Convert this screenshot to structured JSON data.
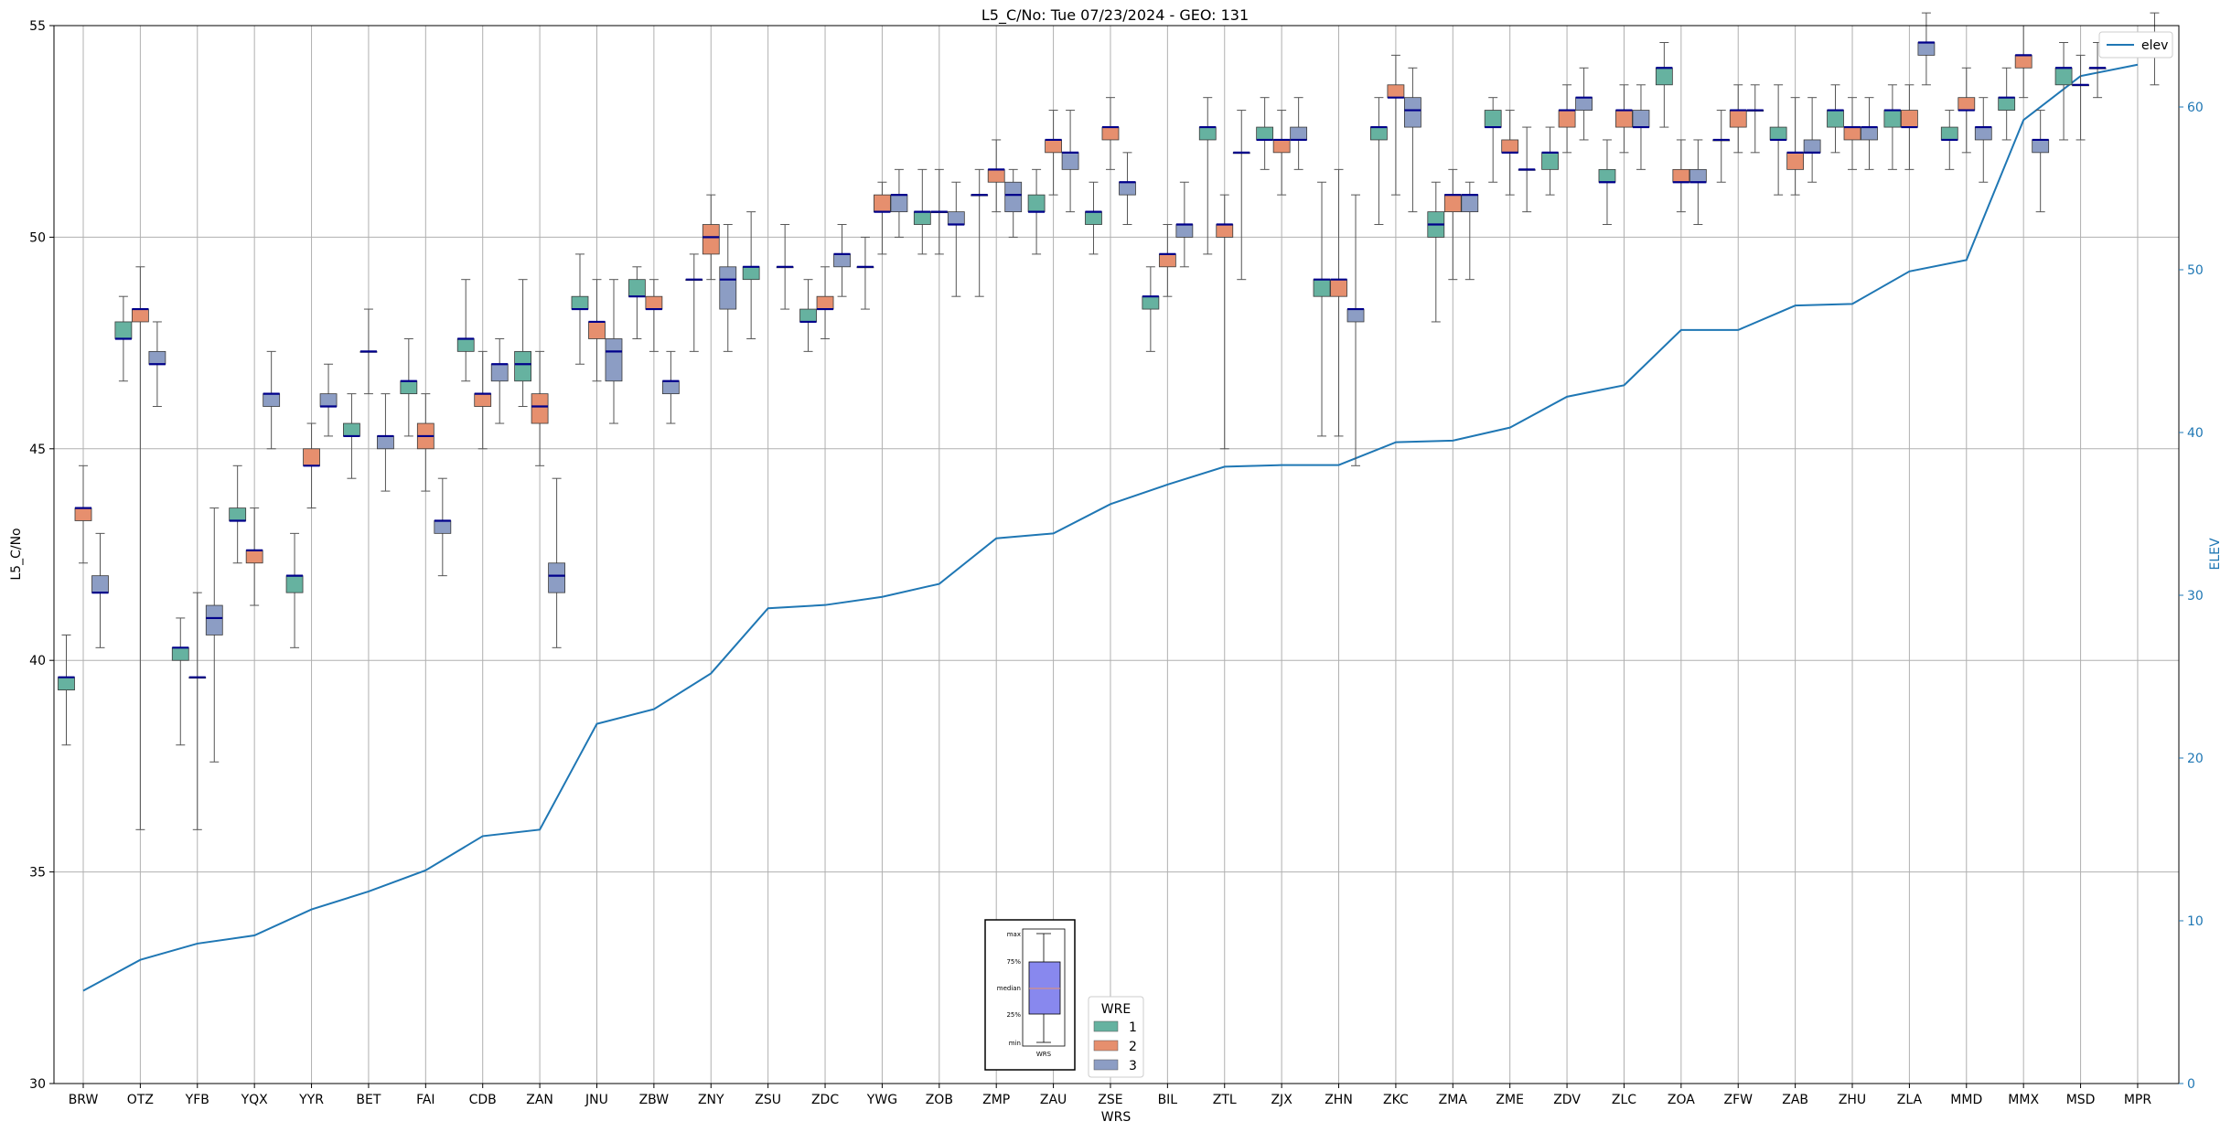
{
  "chart_data": {
    "type": "box",
    "title": "L5_C/No: Tue 07/23/2024 - GEO: 131",
    "xlabel": "WRS",
    "ylabel": "L5_C/No",
    "ylabel_right": "ELEV",
    "ylim": [
      30,
      55
    ],
    "ylim_right": [
      0,
      65
    ],
    "yticks": [
      "30",
      "35",
      "40",
      "45",
      "50",
      "55"
    ],
    "yticks_right": [
      "0",
      "10",
      "20",
      "30",
      "40",
      "50",
      "60"
    ],
    "grid": true,
    "colors": {
      "1": "#66b2a0",
      "2": "#e68f6e",
      "3": "#8c9dc4",
      "median": "#00008b",
      "elev": "#1f77b4",
      "whisker": "#555555"
    },
    "categories": [
      "BRW",
      "OTZ",
      "YFB",
      "YQX",
      "YYR",
      "BET",
      "FAI",
      "CDB",
      "ZAN",
      "JNU",
      "ZBW",
      "ZNY",
      "ZSU",
      "ZDC",
      "YWG",
      "ZOB",
      "ZMP",
      "ZAU",
      "ZSE",
      "BIL",
      "ZTL",
      "ZJX",
      "ZHN",
      "ZKC",
      "ZMA",
      "ZME",
      "ZDV",
      "ZLC",
      "ZOA",
      "ZFW",
      "ZAB",
      "ZHU",
      "ZLA",
      "MMD",
      "MMX",
      "MSD",
      "MPR"
    ],
    "boxes": [
      {
        "cat": "BRW",
        "wre": 1,
        "min": 38.0,
        "q1": 39.3,
        "med": 39.6,
        "q3": 39.6,
        "max": 40.6
      },
      {
        "cat": "BRW",
        "wre": 2,
        "min": 42.3,
        "q1": 43.3,
        "med": 43.6,
        "q3": 43.6,
        "max": 44.6
      },
      {
        "cat": "BRW",
        "wre": 3,
        "min": 40.3,
        "q1": 41.6,
        "med": 41.6,
        "q3": 42.0,
        "max": 43.0
      },
      {
        "cat": "OTZ",
        "wre": 1,
        "min": 46.6,
        "q1": 47.6,
        "med": 47.6,
        "q3": 48.0,
        "max": 48.6
      },
      {
        "cat": "OTZ",
        "wre": 2,
        "min": 36.0,
        "q1": 48.0,
        "med": 48.3,
        "q3": 48.3,
        "max": 49.3
      },
      {
        "cat": "OTZ",
        "wre": 3,
        "min": 46.0,
        "q1": 47.0,
        "med": 47.0,
        "q3": 47.3,
        "max": 48.0
      },
      {
        "cat": "YFB",
        "wre": 1,
        "min": 38.0,
        "q1": 40.0,
        "med": 40.3,
        "q3": 40.3,
        "max": 41.0
      },
      {
        "cat": "YFB",
        "wre": 2,
        "min": 36.0,
        "q1": 39.6,
        "med": 39.6,
        "q3": 39.6,
        "max": 41.6
      },
      {
        "cat": "YFB",
        "wre": 3,
        "min": 37.6,
        "q1": 40.6,
        "med": 41.0,
        "q3": 41.3,
        "max": 43.6
      },
      {
        "cat": "YQX",
        "wre": 1,
        "min": 42.3,
        "q1": 43.3,
        "med": 43.3,
        "q3": 43.6,
        "max": 44.6
      },
      {
        "cat": "YQX",
        "wre": 2,
        "min": 41.3,
        "q1": 42.3,
        "med": 42.6,
        "q3": 42.6,
        "max": 43.6
      },
      {
        "cat": "YQX",
        "wre": 3,
        "min": 45.0,
        "q1": 46.0,
        "med": 46.3,
        "q3": 46.3,
        "max": 47.3
      },
      {
        "cat": "YYR",
        "wre": 1,
        "min": 40.3,
        "q1": 41.6,
        "med": 42.0,
        "q3": 42.0,
        "max": 43.0
      },
      {
        "cat": "YYR",
        "wre": 2,
        "min": 43.6,
        "q1": 44.6,
        "med": 44.6,
        "q3": 45.0,
        "max": 45.6
      },
      {
        "cat": "YYR",
        "wre": 3,
        "min": 45.3,
        "q1": 46.0,
        "med": 46.0,
        "q3": 46.3,
        "max": 47.0
      },
      {
        "cat": "BET",
        "wre": 1,
        "min": 44.3,
        "q1": 45.3,
        "med": 45.3,
        "q3": 45.6,
        "max": 46.3
      },
      {
        "cat": "BET",
        "wre": 2,
        "min": 46.3,
        "q1": 47.3,
        "med": 47.3,
        "q3": 47.3,
        "max": 48.3
      },
      {
        "cat": "BET",
        "wre": 3,
        "min": 44.0,
        "q1": 45.0,
        "med": 45.3,
        "q3": 45.3,
        "max": 46.3
      },
      {
        "cat": "FAI",
        "wre": 1,
        "min": 45.3,
        "q1": 46.3,
        "med": 46.6,
        "q3": 46.6,
        "max": 47.6
      },
      {
        "cat": "FAI",
        "wre": 2,
        "min": 44.0,
        "q1": 45.0,
        "med": 45.3,
        "q3": 45.6,
        "max": 46.3
      },
      {
        "cat": "FAI",
        "wre": 3,
        "min": 42.0,
        "q1": 43.0,
        "med": 43.3,
        "q3": 43.3,
        "max": 44.3
      },
      {
        "cat": "CDB",
        "wre": 1,
        "min": 46.6,
        "q1": 47.3,
        "med": 47.6,
        "q3": 47.6,
        "max": 49.0
      },
      {
        "cat": "CDB",
        "wre": 2,
        "min": 45.0,
        "q1": 46.0,
        "med": 46.3,
        "q3": 46.3,
        "max": 47.3
      },
      {
        "cat": "CDB",
        "wre": 3,
        "min": 45.6,
        "q1": 46.6,
        "med": 47.0,
        "q3": 47.0,
        "max": 47.6
      },
      {
        "cat": "ZAN",
        "wre": 1,
        "min": 46.0,
        "q1": 46.6,
        "med": 47.0,
        "q3": 47.3,
        "max": 49.0
      },
      {
        "cat": "ZAN",
        "wre": 2,
        "min": 44.6,
        "q1": 45.6,
        "med": 46.0,
        "q3": 46.3,
        "max": 47.3
      },
      {
        "cat": "ZAN",
        "wre": 3,
        "min": 40.3,
        "q1": 41.6,
        "med": 42.0,
        "q3": 42.3,
        "max": 44.3
      },
      {
        "cat": "JNU",
        "wre": 1,
        "min": 47.0,
        "q1": 48.3,
        "med": 48.3,
        "q3": 48.6,
        "max": 49.6
      },
      {
        "cat": "JNU",
        "wre": 2,
        "min": 46.6,
        "q1": 47.6,
        "med": 48.0,
        "q3": 48.0,
        "max": 49.0
      },
      {
        "cat": "JNU",
        "wre": 3,
        "min": 45.6,
        "q1": 46.6,
        "med": 47.3,
        "q3": 47.6,
        "max": 49.0
      },
      {
        "cat": "ZBW",
        "wre": 1,
        "min": 47.6,
        "q1": 48.6,
        "med": 48.6,
        "q3": 49.0,
        "max": 49.3
      },
      {
        "cat": "ZBW",
        "wre": 2,
        "min": 47.3,
        "q1": 48.3,
        "med": 48.3,
        "q3": 48.6,
        "max": 49.0
      },
      {
        "cat": "ZBW",
        "wre": 3,
        "min": 45.6,
        "q1": 46.3,
        "med": 46.6,
        "q3": 46.6,
        "max": 47.3
      },
      {
        "cat": "ZNY",
        "wre": 1,
        "min": 47.3,
        "q1": 49.0,
        "med": 49.0,
        "q3": 49.0,
        "max": 49.6
      },
      {
        "cat": "ZNY",
        "wre": 2,
        "min": 49.0,
        "q1": 49.6,
        "med": 50.0,
        "q3": 50.3,
        "max": 51.0
      },
      {
        "cat": "ZNY",
        "wre": 3,
        "min": 47.3,
        "q1": 48.3,
        "med": 49.0,
        "q3": 49.3,
        "max": 50.3
      },
      {
        "cat": "ZSU",
        "wre": 1,
        "min": 47.6,
        "q1": 49.0,
        "med": 49.3,
        "q3": 49.3,
        "max": 50.6
      },
      {
        "cat": "ZSU",
        "wre": 3,
        "min": 48.3,
        "q1": 49.3,
        "med": 49.3,
        "q3": 49.3,
        "max": 50.3
      },
      {
        "cat": "ZDC",
        "wre": 1,
        "min": 47.3,
        "q1": 48.0,
        "med": 48.0,
        "q3": 48.3,
        "max": 49.0
      },
      {
        "cat": "ZDC",
        "wre": 2,
        "min": 47.6,
        "q1": 48.3,
        "med": 48.3,
        "q3": 48.6,
        "max": 49.3
      },
      {
        "cat": "ZDC",
        "wre": 3,
        "min": 48.6,
        "q1": 49.3,
        "med": 49.6,
        "q3": 49.6,
        "max": 50.3
      },
      {
        "cat": "YWG",
        "wre": 1,
        "min": 48.3,
        "q1": 49.3,
        "med": 49.3,
        "q3": 49.3,
        "max": 50.0
      },
      {
        "cat": "YWG",
        "wre": 2,
        "min": 49.6,
        "q1": 50.6,
        "med": 50.6,
        "q3": 51.0,
        "max": 51.3
      },
      {
        "cat": "YWG",
        "wre": 3,
        "min": 50.0,
        "q1": 50.6,
        "med": 51.0,
        "q3": 51.0,
        "max": 51.6
      },
      {
        "cat": "ZOB",
        "wre": 1,
        "min": 49.6,
        "q1": 50.3,
        "med": 50.6,
        "q3": 50.6,
        "max": 51.6
      },
      {
        "cat": "ZOB",
        "wre": 2,
        "min": 49.6,
        "q1": 50.6,
        "med": 50.6,
        "q3": 50.6,
        "max": 51.6
      },
      {
        "cat": "ZOB",
        "wre": 3,
        "min": 48.6,
        "q1": 50.3,
        "med": 50.3,
        "q3": 50.6,
        "max": 51.3
      },
      {
        "cat": "ZMP",
        "wre": 1,
        "min": 48.6,
        "q1": 51.0,
        "med": 51.0,
        "q3": 51.0,
        "max": 51.6
      },
      {
        "cat": "ZMP",
        "wre": 2,
        "min": 50.6,
        "q1": 51.3,
        "med": 51.6,
        "q3": 51.6,
        "max": 52.3
      },
      {
        "cat": "ZMP",
        "wre": 3,
        "min": 50.0,
        "q1": 50.6,
        "med": 51.0,
        "q3": 51.3,
        "max": 51.6
      },
      {
        "cat": "ZAU",
        "wre": 1,
        "min": 49.6,
        "q1": 50.6,
        "med": 50.6,
        "q3": 51.0,
        "max": 51.6
      },
      {
        "cat": "ZAU",
        "wre": 2,
        "min": 51.0,
        "q1": 52.0,
        "med": 52.3,
        "q3": 52.3,
        "max": 53.0
      },
      {
        "cat": "ZAU",
        "wre": 3,
        "min": 50.6,
        "q1": 51.6,
        "med": 52.0,
        "q3": 52.0,
        "max": 53.0
      },
      {
        "cat": "ZSE",
        "wre": 1,
        "min": 49.6,
        "q1": 50.3,
        "med": 50.6,
        "q3": 50.6,
        "max": 51.3
      },
      {
        "cat": "ZSE",
        "wre": 2,
        "min": 51.6,
        "q1": 52.3,
        "med": 52.6,
        "q3": 52.6,
        "max": 53.3
      },
      {
        "cat": "ZSE",
        "wre": 3,
        "min": 50.3,
        "q1": 51.0,
        "med": 51.3,
        "q3": 51.3,
        "max": 52.0
      },
      {
        "cat": "BIL",
        "wre": 1,
        "min": 47.3,
        "q1": 48.3,
        "med": 48.6,
        "q3": 48.6,
        "max": 49.3
      },
      {
        "cat": "BIL",
        "wre": 2,
        "min": 48.6,
        "q1": 49.3,
        "med": 49.6,
        "q3": 49.6,
        "max": 50.3
      },
      {
        "cat": "BIL",
        "wre": 3,
        "min": 49.3,
        "q1": 50.0,
        "med": 50.3,
        "q3": 50.3,
        "max": 51.3
      },
      {
        "cat": "ZTL",
        "wre": 1,
        "min": 49.6,
        "q1": 52.3,
        "med": 52.6,
        "q3": 52.6,
        "max": 53.3
      },
      {
        "cat": "ZTL",
        "wre": 2,
        "min": 45.0,
        "q1": 50.0,
        "med": 50.3,
        "q3": 50.3,
        "max": 51.0
      },
      {
        "cat": "ZTL",
        "wre": 3,
        "min": 49.0,
        "q1": 52.0,
        "med": 52.0,
        "q3": 52.0,
        "max": 53.0
      },
      {
        "cat": "ZJX",
        "wre": 1,
        "min": 51.6,
        "q1": 52.3,
        "med": 52.3,
        "q3": 52.6,
        "max": 53.3
      },
      {
        "cat": "ZJX",
        "wre": 2,
        "min": 51.0,
        "q1": 52.0,
        "med": 52.3,
        "q3": 52.3,
        "max": 53.0
      },
      {
        "cat": "ZJX",
        "wre": 3,
        "min": 51.6,
        "q1": 52.3,
        "med": 52.3,
        "q3": 52.6,
        "max": 53.3
      },
      {
        "cat": "ZHN",
        "wre": 1,
        "min": 45.3,
        "q1": 48.6,
        "med": 49.0,
        "q3": 49.0,
        "max": 51.3
      },
      {
        "cat": "ZHN",
        "wre": 2,
        "min": 45.3,
        "q1": 48.6,
        "med": 49.0,
        "q3": 49.0,
        "max": 51.6
      },
      {
        "cat": "ZHN",
        "wre": 3,
        "min": 44.6,
        "q1": 48.0,
        "med": 48.3,
        "q3": 48.3,
        "max": 51.0
      },
      {
        "cat": "ZKC",
        "wre": 1,
        "min": 50.3,
        "q1": 52.3,
        "med": 52.6,
        "q3": 52.6,
        "max": 53.3
      },
      {
        "cat": "ZKC",
        "wre": 2,
        "min": 51.0,
        "q1": 53.3,
        "med": 53.3,
        "q3": 53.6,
        "max": 54.3
      },
      {
        "cat": "ZKC",
        "wre": 3,
        "min": 50.6,
        "q1": 52.6,
        "med": 53.0,
        "q3": 53.3,
        "max": 54.0
      },
      {
        "cat": "ZMA",
        "wre": 1,
        "min": 48.0,
        "q1": 50.0,
        "med": 50.3,
        "q3": 50.6,
        "max": 51.3
      },
      {
        "cat": "ZMA",
        "wre": 2,
        "min": 49.0,
        "q1": 50.6,
        "med": 51.0,
        "q3": 51.0,
        "max": 51.6
      },
      {
        "cat": "ZMA",
        "wre": 3,
        "min": 49.0,
        "q1": 50.6,
        "med": 51.0,
        "q3": 51.0,
        "max": 51.3
      },
      {
        "cat": "ZME",
        "wre": 1,
        "min": 51.3,
        "q1": 52.6,
        "med": 52.6,
        "q3": 53.0,
        "max": 53.3
      },
      {
        "cat": "ZME",
        "wre": 2,
        "min": 51.0,
        "q1": 52.0,
        "med": 52.0,
        "q3": 52.3,
        "max": 53.0
      },
      {
        "cat": "ZME",
        "wre": 3,
        "min": 50.6,
        "q1": 51.6,
        "med": 51.6,
        "q3": 51.6,
        "max": 52.6
      },
      {
        "cat": "ZDV",
        "wre": 1,
        "min": 51.0,
        "q1": 51.6,
        "med": 52.0,
        "q3": 52.0,
        "max": 52.6
      },
      {
        "cat": "ZDV",
        "wre": 2,
        "min": 52.0,
        "q1": 52.6,
        "med": 53.0,
        "q3": 53.0,
        "max": 53.6
      },
      {
        "cat": "ZDV",
        "wre": 3,
        "min": 52.3,
        "q1": 53.0,
        "med": 53.3,
        "q3": 53.3,
        "max": 54.0
      },
      {
        "cat": "ZLC",
        "wre": 1,
        "min": 50.3,
        "q1": 51.3,
        "med": 51.3,
        "q3": 51.6,
        "max": 52.3
      },
      {
        "cat": "ZLC",
        "wre": 2,
        "min": 52.0,
        "q1": 52.6,
        "med": 53.0,
        "q3": 53.0,
        "max": 53.6
      },
      {
        "cat": "ZLC",
        "wre": 3,
        "min": 51.6,
        "q1": 52.6,
        "med": 52.6,
        "q3": 53.0,
        "max": 53.6
      },
      {
        "cat": "ZOA",
        "wre": 1,
        "min": 52.6,
        "q1": 53.6,
        "med": 54.0,
        "q3": 54.0,
        "max": 54.6
      },
      {
        "cat": "ZOA",
        "wre": 2,
        "min": 50.6,
        "q1": 51.3,
        "med": 51.3,
        "q3": 51.6,
        "max": 52.3
      },
      {
        "cat": "ZOA",
        "wre": 3,
        "min": 50.3,
        "q1": 51.3,
        "med": 51.3,
        "q3": 51.6,
        "max": 52.3
      },
      {
        "cat": "ZFW",
        "wre": 1,
        "min": 51.3,
        "q1": 52.3,
        "med": 52.3,
        "q3": 52.3,
        "max": 53.0
      },
      {
        "cat": "ZFW",
        "wre": 2,
        "min": 52.0,
        "q1": 52.6,
        "med": 53.0,
        "q3": 53.0,
        "max": 53.6
      },
      {
        "cat": "ZFW",
        "wre": 3,
        "min": 52.0,
        "q1": 53.0,
        "med": 53.0,
        "q3": 53.0,
        "max": 53.6
      },
      {
        "cat": "ZAB",
        "wre": 1,
        "min": 51.0,
        "q1": 52.3,
        "med": 52.3,
        "q3": 52.6,
        "max": 53.6
      },
      {
        "cat": "ZAB",
        "wre": 2,
        "min": 51.0,
        "q1": 51.6,
        "med": 52.0,
        "q3": 52.0,
        "max": 53.3
      },
      {
        "cat": "ZAB",
        "wre": 3,
        "min": 51.3,
        "q1": 52.0,
        "med": 52.0,
        "q3": 52.3,
        "max": 53.3
      },
      {
        "cat": "ZHU",
        "wre": 1,
        "min": 52.0,
        "q1": 52.6,
        "med": 53.0,
        "q3": 53.0,
        "max": 53.6
      },
      {
        "cat": "ZHU",
        "wre": 2,
        "min": 51.6,
        "q1": 52.3,
        "med": 52.6,
        "q3": 52.6,
        "max": 53.3
      },
      {
        "cat": "ZHU",
        "wre": 3,
        "min": 51.6,
        "q1": 52.3,
        "med": 52.6,
        "q3": 52.6,
        "max": 53.3
      },
      {
        "cat": "ZLA",
        "wre": 1,
        "min": 51.6,
        "q1": 52.6,
        "med": 53.0,
        "q3": 53.0,
        "max": 53.6
      },
      {
        "cat": "ZLA",
        "wre": 2,
        "min": 51.6,
        "q1": 52.6,
        "med": 52.6,
        "q3": 53.0,
        "max": 53.6
      },
      {
        "cat": "ZLA",
        "wre": 3,
        "min": 53.6,
        "q1": 54.3,
        "med": 54.6,
        "q3": 54.6,
        "max": 55.3
      },
      {
        "cat": "MMD",
        "wre": 1,
        "min": 51.6,
        "q1": 52.3,
        "med": 52.3,
        "q3": 52.6,
        "max": 53.0
      },
      {
        "cat": "MMD",
        "wre": 2,
        "min": 52.0,
        "q1": 53.0,
        "med": 53.0,
        "q3": 53.3,
        "max": 54.0
      },
      {
        "cat": "MMD",
        "wre": 3,
        "min": 51.3,
        "q1": 52.3,
        "med": 52.6,
        "q3": 52.6,
        "max": 53.3
      },
      {
        "cat": "MMX",
        "wre": 1,
        "min": 52.3,
        "q1": 53.0,
        "med": 53.3,
        "q3": 53.3,
        "max": 54.0
      },
      {
        "cat": "MMX",
        "wre": 2,
        "min": 53.3,
        "q1": 54.0,
        "med": 54.3,
        "q3": 54.3,
        "max": 55.0
      },
      {
        "cat": "MMX",
        "wre": 3,
        "min": 50.6,
        "q1": 52.0,
        "med": 52.3,
        "q3": 52.3,
        "max": 53.0
      },
      {
        "cat": "MSD",
        "wre": 1,
        "min": 52.3,
        "q1": 53.6,
        "med": 54.0,
        "q3": 54.0,
        "max": 54.6
      },
      {
        "cat": "MSD",
        "wre": 2,
        "min": 52.3,
        "q1": 53.6,
        "med": 53.6,
        "q3": 53.6,
        "max": 54.3
      },
      {
        "cat": "MSD",
        "wre": 3,
        "min": 53.3,
        "q1": 54.0,
        "med": 54.0,
        "q3": 54.0,
        "max": 54.6
      },
      {
        "cat": "MPR",
        "wre": 3,
        "min": 53.6,
        "q1": 54.3,
        "med": 54.3,
        "q3": 54.6,
        "max": 55.3
      }
    ],
    "elev": {
      "name": "elev",
      "values": [
        5.7,
        7.6,
        8.6,
        9.1,
        10.7,
        11.8,
        13.1,
        15.2,
        15.6,
        22.1,
        23.0,
        25.2,
        29.2,
        29.4,
        29.9,
        30.7,
        33.5,
        33.8,
        35.6,
        36.8,
        37.9,
        38.0,
        38.0,
        39.4,
        39.5,
        40.3,
        42.2,
        42.9,
        46.3,
        46.3,
        47.8,
        47.9,
        49.9,
        50.6,
        59.2,
        61.9,
        62.6
      ]
    },
    "legend": {
      "title": "WRE",
      "entries": [
        "1",
        "2",
        "3"
      ],
      "elev_label": "elev",
      "placement": "top-right"
    },
    "key": {
      "labels": [
        "max",
        "75%",
        "median",
        "25%",
        "min"
      ],
      "xlabel": "WRS"
    }
  }
}
